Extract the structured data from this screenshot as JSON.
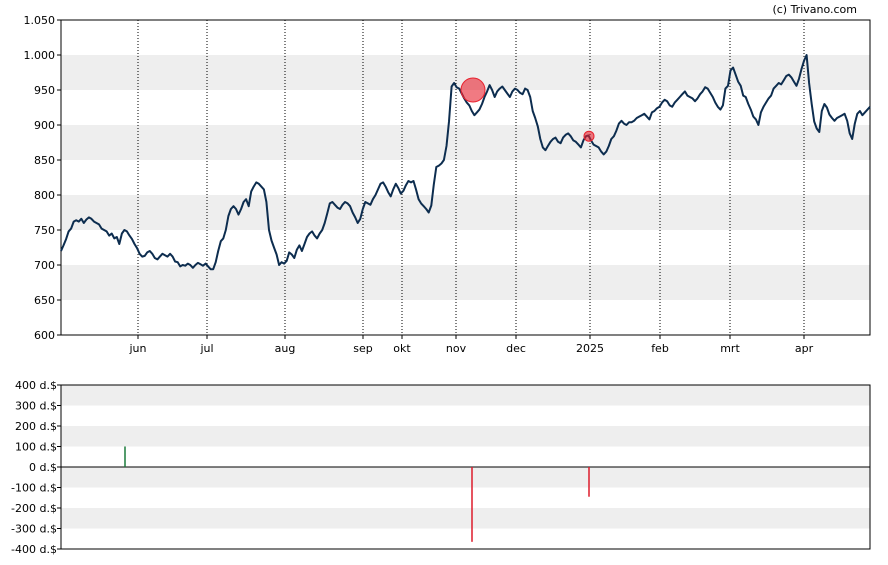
{
  "credit": "(c) Trivano.com",
  "colors": {
    "band": "#eeeeee",
    "price_line": "#0d2d4f",
    "marker": "#e8222e",
    "bar_positive": "#1a7a3a",
    "bar_negative": "#dd1b2b",
    "axis": "#000000",
    "vgrid": "#000000"
  },
  "chart_data": [
    {
      "type": "line",
      "title": "",
      "xlabel": "",
      "ylabel": "",
      "ylim": [
        600,
        1050
      ],
      "y_ticks": [
        "600",
        "650",
        "700",
        "750",
        "800",
        "850",
        "900",
        "950",
        "1.000",
        "1.050"
      ],
      "x_ticks": [
        "jun",
        "jul",
        "aug",
        "sep",
        "okt",
        "nov",
        "dec",
        "2025",
        "feb",
        "mrt",
        "apr"
      ],
      "grid": "alternating horizontal bands, dotted vertical lines at month ticks",
      "series": [
        {
          "values": [
            720,
            728,
            737,
            748,
            752,
            762,
            764,
            762,
            766,
            760,
            765,
            768,
            766,
            762,
            760,
            758,
            752,
            750,
            748,
            742,
            745,
            738,
            740,
            730,
            745,
            750,
            748,
            742,
            737,
            730,
            724,
            716,
            712,
            713,
            718,
            720,
            716,
            710,
            708,
            712,
            716,
            714,
            712,
            716,
            712,
            705,
            704,
            698,
            700,
            699,
            702,
            700,
            696,
            700,
            703,
            701,
            699,
            702,
            698,
            694,
            694,
            704,
            720,
            734,
            738,
            750,
            770,
            780,
            784,
            780,
            772,
            780,
            790,
            794,
            784,
            805,
            812,
            818,
            816,
            812,
            808,
            790,
            750,
            735,
            725,
            715,
            700,
            704,
            702,
            706,
            718,
            715,
            710,
            722,
            728,
            720,
            730,
            740,
            745,
            748,
            742,
            738,
            745,
            750,
            760,
            774,
            788,
            790,
            786,
            782,
            780,
            786,
            790,
            788,
            784,
            775,
            768,
            760,
            766,
            780,
            790,
            788,
            786,
            794,
            800,
            808,
            816,
            818,
            812,
            804,
            798,
            808,
            816,
            810,
            802,
            806,
            814,
            820,
            818,
            820,
            808,
            794,
            788,
            784,
            780,
            775,
            785,
            815,
            840,
            842,
            845,
            850,
            870,
            905,
            955,
            960,
            954,
            952,
            945,
            938,
            932,
            928,
            920,
            914,
            918,
            922,
            930,
            940,
            948,
            957,
            950,
            940,
            948,
            952,
            955,
            950,
            945,
            940,
            948,
            952,
            950,
            946,
            944,
            952,
            950,
            940,
            920,
            910,
            898,
            880,
            868,
            864,
            870,
            876,
            880,
            882,
            876,
            874,
            882,
            886,
            888,
            884,
            878,
            876,
            872,
            868,
            878,
            884,
            885,
            878,
            872,
            870,
            868,
            862,
            858,
            862,
            870,
            880,
            884,
            892,
            902,
            906,
            902,
            900,
            904,
            904,
            906,
            910,
            912,
            914,
            916,
            912,
            908,
            918,
            920,
            924,
            926,
            932,
            936,
            934,
            928,
            926,
            932,
            936,
            940,
            944,
            948,
            942,
            940,
            938,
            934,
            938,
            944,
            948,
            954,
            952,
            946,
            940,
            932,
            926,
            922,
            928,
            952,
            956,
            978,
            982,
            972,
            962,
            956,
            942,
            940,
            930,
            922,
            912,
            908,
            900,
            918,
            926,
            932,
            938,
            942,
            952,
            956,
            960,
            958,
            964,
            970,
            972,
            968,
            962,
            956,
            966,
            980,
            992,
            1000,
            960,
            930,
            905,
            895,
            890,
            920,
            930,
            925,
            915,
            910,
            906,
            910,
            912,
            914,
            916,
            906,
            888,
            880,
            902,
            916,
            920,
            914,
            918,
            922,
            926
          ]
        }
      ],
      "events": [
        {
          "label": "sell",
          "value": 950,
          "size": "large"
        },
        {
          "label": "sell",
          "value": 884,
          "size": "small"
        }
      ]
    },
    {
      "type": "bar",
      "title": "",
      "xlabel": "",
      "ylabel": "",
      "ylim": [
        -400,
        400
      ],
      "y_ticks": [
        "-400 d.$",
        "-300 d.$",
        "-200 d.$",
        "-100 d.$",
        "0 d.$",
        "100 d.$",
        "200 d.$",
        "300 d.$",
        "400 d.$"
      ],
      "grid": "alternating horizontal bands",
      "bars": [
        {
          "date": "mid mei",
          "value": 100
        },
        {
          "date": "mid nov",
          "value": -365
        },
        {
          "date": "early jan",
          "value": -145
        }
      ]
    }
  ]
}
